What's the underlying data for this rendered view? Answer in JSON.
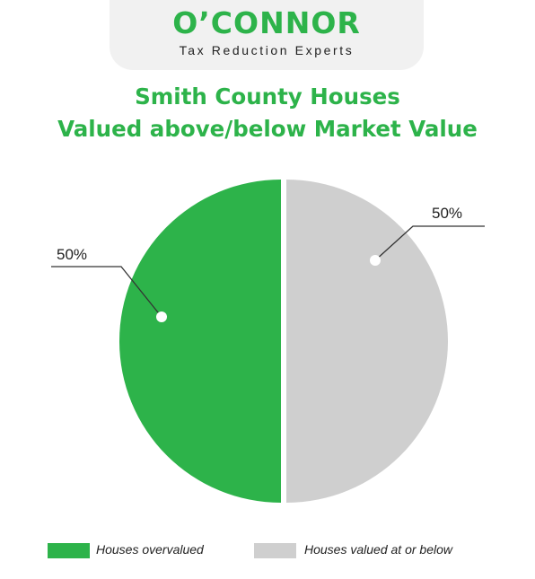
{
  "brand": {
    "name": "O’CONNOR",
    "tagline": "Tax Reduction Experts"
  },
  "chart_data": {
    "type": "pie",
    "title_lines": [
      "Smith County Houses",
      "Valued above/below Market Value"
    ],
    "slices": [
      {
        "label": "Houses overvalued",
        "value": 50,
        "display": "50%",
        "color": "#2db34a"
      },
      {
        "label": "Houses valued at or below",
        "value": 50,
        "display": "50%",
        "color": "#cfcfcf"
      }
    ],
    "legend_position": "bottom"
  }
}
